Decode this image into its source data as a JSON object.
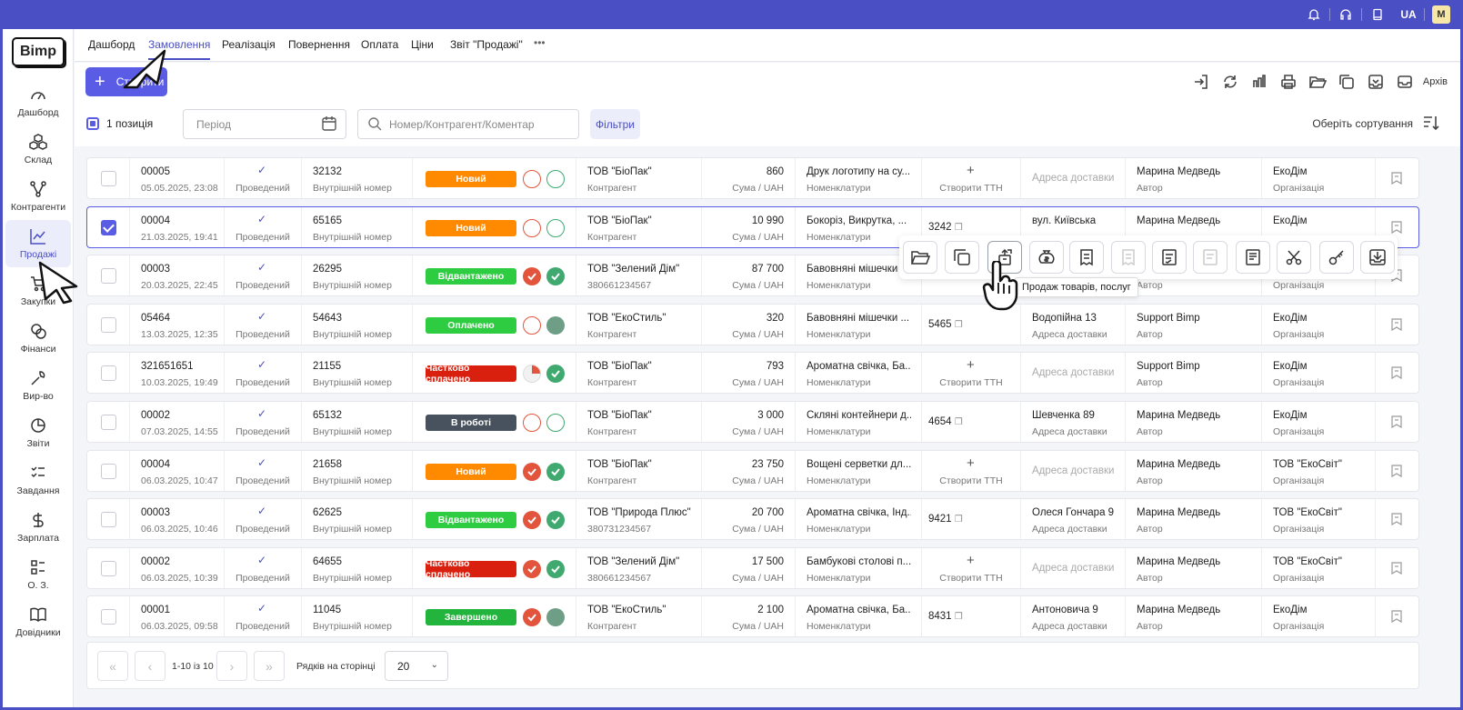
{
  "topbar": {
    "icons": [
      "bell-icon",
      "headset-icon",
      "book-icon"
    ],
    "lang": "UA",
    "avatar": "M"
  },
  "sidebar": {
    "logo": "Bimp",
    "items": [
      {
        "label": "Дашборд",
        "icon": "gauge-icon"
      },
      {
        "label": "Склад",
        "icon": "boxes-icon"
      },
      {
        "label": "Контрагенти",
        "icon": "network-icon"
      },
      {
        "label": "Продажі",
        "icon": "chart-icon",
        "active": true
      },
      {
        "label": "Закупки",
        "icon": "cart-icon"
      },
      {
        "label": "Фінанси",
        "icon": "coins-icon"
      },
      {
        "label": "Вир-во",
        "icon": "wrench-icon"
      },
      {
        "label": "Звіти",
        "icon": "pie-icon"
      },
      {
        "label": "Завдання",
        "icon": "tasks-icon"
      },
      {
        "label": "Зарплата",
        "icon": "dollar-icon"
      },
      {
        "label": "О. З.",
        "icon": "list-icon"
      },
      {
        "label": "Довідники",
        "icon": "open-book-icon"
      }
    ]
  },
  "tabs": [
    {
      "label": "Дашборд"
    },
    {
      "label": "Замовлення",
      "active": true
    },
    {
      "label": "Реалізація"
    },
    {
      "label": "Повернення"
    },
    {
      "label": "Оплата"
    },
    {
      "label": "Ціни"
    },
    {
      "label": "Звіт \"Продажі\""
    },
    {
      "label": "•••"
    }
  ],
  "toolbar": {
    "create_label": "Створити",
    "archive_label": "Архів",
    "selection_label": "1 позиція",
    "period_placeholder": "Період",
    "search_placeholder": "Номер/Контрагент/Коментар",
    "filters_label": "Фільтри",
    "sort_label": "Оберіть сортування"
  },
  "colors": {
    "accent": "#5b5ce6",
    "topbar": "#4a4fc4",
    "status_new": "#ff8a00",
    "status_shipped": "#2ecc40",
    "status_paid": "#2ecc40",
    "status_partial": "#d9200e",
    "status_inwork": "#48525e",
    "status_done": "#22b43c"
  },
  "rows": [
    {
      "num": "00005",
      "date": "05.05.2025, 23:08",
      "state": "Проведений",
      "ext": "32132",
      "ext_label": "Внутрішній номер",
      "status": "Новий",
      "status_color": "#ff8a00",
      "dot1": "empty-red",
      "dot2": "empty-green",
      "client": "ТОВ \"БіоПак\"",
      "client_sub": "Контрагент",
      "sum": "860",
      "sum_label": "Сума / UAH",
      "items": "Друк логотипу на су...",
      "items_label": "Номенклатури",
      "ttn": "",
      "ttn_label": "Створити ТТН",
      "address": "",
      "address_label": "Адреса доставки",
      "author": "Марина Медведь",
      "author_label": "Автор",
      "org": "ЕкоДім",
      "org_label": "Організація",
      "checked": false
    },
    {
      "num": "00004",
      "date": "21.03.2025, 19:41",
      "state": "Проведений",
      "ext": "65165",
      "ext_label": "Внутрішній номер",
      "status": "Новий",
      "status_color": "#ff8a00",
      "dot1": "empty-red",
      "dot2": "empty-green",
      "client": "ТОВ \"БіоПак\"",
      "client_sub": "Контрагент",
      "sum": "10 990",
      "sum_label": "Сума / UAH",
      "items": "Бокоріз, Викрутка, ...",
      "items_label": "Номенклатури",
      "ttn": "3242",
      "ttn_label": "",
      "address": "вул. Київська",
      "address_label": "",
      "author": "Марина Медведь",
      "author_label": "",
      "org": "ЕкоДім",
      "org_label": "",
      "checked": true
    },
    {
      "num": "00003",
      "date": "20.03.2025, 22:45",
      "state": "Проведений",
      "ext": "26295",
      "ext_label": "Внутрішній номер",
      "status": "Відвантажено",
      "status_color": "#2ecc40",
      "dot1": "red",
      "dot2": "green",
      "client": "ТОВ \"Зелений Дім\"",
      "client_sub": "380661234567",
      "sum": "87 700",
      "sum_label": "Сума / UAH",
      "items": "Бавовняні мішечки",
      "items_label": "Номенклатури",
      "ttn": "",
      "ttn_label": "",
      "address": "",
      "address_label": "",
      "author": "",
      "author_label": "Автор",
      "org": "",
      "org_label": "Організація",
      "checked": false
    },
    {
      "num": "05464",
      "date": "13.03.2025, 12:35",
      "state": "Проведений",
      "ext": "54643",
      "ext_label": "Внутрішній номер",
      "status": "Оплачено",
      "status_color": "#2ecc40",
      "dot1": "empty-red",
      "dot2": "gray",
      "client": "ТОВ \"ЕкоСтиль\"",
      "client_sub": "Контрагент",
      "sum": "320",
      "sum_label": "Сума / UAH",
      "items": "Бавовняні мішечки ...",
      "items_label": "Номенклатури",
      "ttn": "5465",
      "ttn_label": "",
      "address": "Водопійна 13",
      "address_label": "Адреса доставки",
      "author": "Support Bimp",
      "author_label": "Автор",
      "org": "ЕкоДім",
      "org_label": "Організація",
      "checked": false
    },
    {
      "num": "321651651",
      "date": "10.03.2025, 19:49",
      "state": "Проведений",
      "ext": "21155",
      "ext_label": "Внутрішній номер",
      "status": "Частково сплачено",
      "status_color": "#d9200e",
      "dot1": "part",
      "dot2": "green",
      "client": "ТОВ \"БіоПак\"",
      "client_sub": "Контрагент",
      "sum": "793",
      "sum_label": "Сума / UAH",
      "items": "Ароматна свічка, Ба...",
      "items_label": "Номенклатури",
      "ttn": "",
      "ttn_label": "Створити ТТН",
      "address": "",
      "address_label": "Адреса доставки",
      "author": "Support Bimp",
      "author_label": "Автор",
      "org": "ЕкоДім",
      "org_label": "Організація",
      "checked": false
    },
    {
      "num": "00002",
      "date": "07.03.2025, 14:55",
      "state": "Проведений",
      "ext": "65132",
      "ext_label": "Внутрішній номер",
      "status": "В роботі",
      "status_color": "#48525e",
      "dot1": "empty-red",
      "dot2": "empty-green",
      "client": "ТОВ \"БіоПак\"",
      "client_sub": "Контрагент",
      "sum": "3 000",
      "sum_label": "Сума / UAH",
      "items": "Скляні контейнери д...",
      "items_label": "Номенклатури",
      "ttn": "4654",
      "ttn_label": "",
      "address": "Шевченка 89",
      "address_label": "Адреса доставки",
      "author": "Марина Медведь",
      "author_label": "Автор",
      "org": "ЕкоДім",
      "org_label": "Організація",
      "checked": false
    },
    {
      "num": "00004",
      "date": "06.03.2025, 10:47",
      "state": "Проведений",
      "ext": "21658",
      "ext_label": "Внутрішній номер",
      "status": "Новий",
      "status_color": "#ff8a00",
      "dot1": "red",
      "dot2": "green",
      "client": "ТОВ \"БіоПак\"",
      "client_sub": "Контрагент",
      "sum": "23 750",
      "sum_label": "Сума / UAH",
      "items": "Вощені серветки дл...",
      "items_label": "Номенклатури",
      "ttn": "",
      "ttn_label": "Створити ТТН",
      "address": "",
      "address_label": "Адреса доставки",
      "author": "Марина Медведь",
      "author_label": "Автор",
      "org": "ТОВ \"ЕкоСвіт\"",
      "org_label": "Організація",
      "checked": false
    },
    {
      "num": "00003",
      "date": "06.03.2025, 10:46",
      "state": "Проведений",
      "ext": "62625",
      "ext_label": "Внутрішній номер",
      "status": "Відвантажено",
      "status_color": "#2ecc40",
      "dot1": "red",
      "dot2": "green",
      "client": "ТОВ \"Природа Плюс\"",
      "client_sub": "380731234567",
      "sum": "20 700",
      "sum_label": "Сума / UAH",
      "items": "Ароматна свічка, Інд...",
      "items_label": "Номенклатури",
      "ttn": "9421",
      "ttn_label": "",
      "address": "Олеся Гончара 9",
      "address_label": "Адреса доставки",
      "author": "Марина Медведь",
      "author_label": "Автор",
      "org": "ТОВ \"ЕкоСвіт\"",
      "org_label": "Організація",
      "checked": false
    },
    {
      "num": "00002",
      "date": "06.03.2025, 10:39",
      "state": "Проведений",
      "ext": "64655",
      "ext_label": "Внутрішній номер",
      "status": "Частково сплачено",
      "status_color": "#d9200e",
      "dot1": "red",
      "dot2": "green",
      "client": "ТОВ \"Зелений Дім\"",
      "client_sub": "380661234567",
      "sum": "17 500",
      "sum_label": "Сума / UAH",
      "items": "Бамбукові столові п...",
      "items_label": "Номенклатури",
      "ttn": "",
      "ttn_label": "Створити ТТН",
      "address": "",
      "address_label": "Адреса доставки",
      "author": "Марина Медведь",
      "author_label": "Автор",
      "org": "ТОВ \"ЕкоСвіт\"",
      "org_label": "Організація",
      "checked": false
    },
    {
      "num": "00001",
      "date": "06.03.2025, 09:58",
      "state": "Проведений",
      "ext": "11045",
      "ext_label": "Внутрішній номер",
      "status": "Завершено",
      "status_color": "#22b43c",
      "dot1": "red",
      "dot2": "gray",
      "client": "ТОВ \"ЕкоСтиль\"",
      "client_sub": "Контрагент",
      "sum": "2 100",
      "sum_label": "Сума / UAH",
      "items": "Ароматна свічка, Ба...",
      "items_label": "Номенклатури",
      "ttn": "8431",
      "ttn_label": "",
      "address": "Антоновича 9",
      "address_label": "Адреса доставки",
      "author": "Марина Медведь",
      "author_label": "Автор",
      "org": "ЕкоДім",
      "org_label": "Організація",
      "checked": false
    }
  ],
  "row_actions": {
    "buttons": [
      "folder-open-icon",
      "copy-icon",
      "sale-export-icon",
      "money-bag-icon",
      "receipt-icon",
      "receipt-disabled-icon",
      "invoice-icon",
      "invoice-disabled-icon",
      "document-icon",
      "scissors-icon",
      "key-icon",
      "archive-box-icon"
    ],
    "tooltip": "Продаж товарів, послуг"
  },
  "pagination": {
    "range": "1-10 із 10",
    "rows_label": "Рядків на сторінці",
    "per_page": "20"
  }
}
